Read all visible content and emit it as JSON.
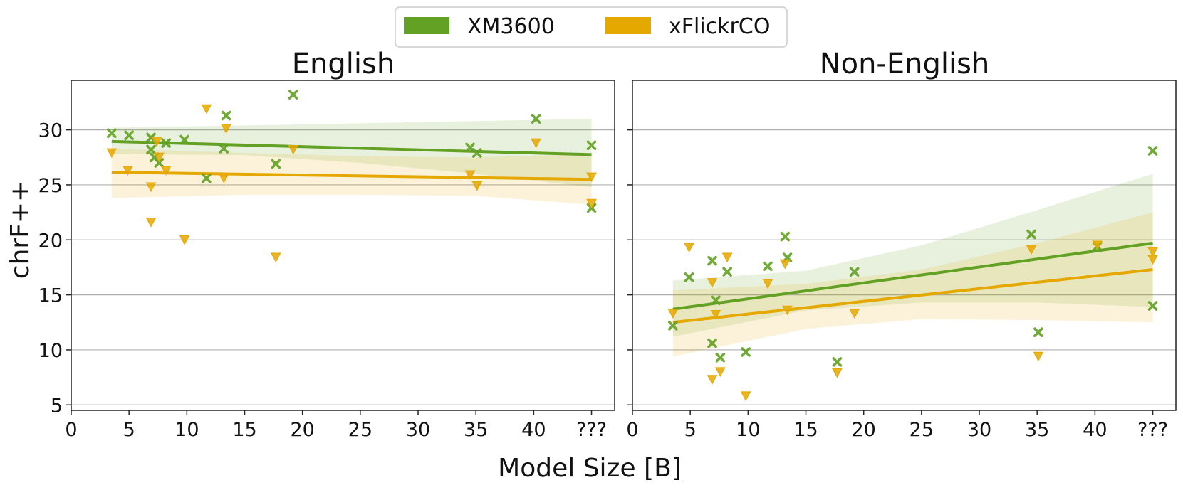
{
  "legend": {
    "entries": [
      {
        "label": "XM3600",
        "color": "#62a123"
      },
      {
        "label": "xFlickrCO",
        "color": "#e5a800"
      }
    ]
  },
  "axes": {
    "xlabel": "Model Size [B]",
    "ylabel": "chrF++"
  },
  "chart_data": [
    {
      "type": "scatter",
      "title": "English",
      "xlabel": "Model Size [B]",
      "ylabel": "chrF++",
      "xlim": [
        0,
        47
      ],
      "ylim": [
        4.5,
        34.5
      ],
      "xticks": [
        "0",
        "5",
        "10",
        "15",
        "20",
        "25",
        "30",
        "35",
        "40",
        "???"
      ],
      "xtick_values": [
        0,
        5,
        10,
        15,
        20,
        25,
        30,
        35,
        40,
        45
      ],
      "yticks": [
        5,
        10,
        15,
        20,
        25,
        30
      ],
      "grid": "horizontal",
      "series": [
        {
          "name": "XM3600",
          "marker": "cross",
          "color": "#62a123",
          "points": [
            [
              3.5,
              29.7
            ],
            [
              5,
              29.5
            ],
            [
              6.9,
              29.3
            ],
            [
              6.9,
              28.2
            ],
            [
              7.2,
              27.5
            ],
            [
              7.6,
              27.0
            ],
            [
              8.2,
              28.8
            ],
            [
              9.8,
              29.1
            ],
            [
              11.7,
              25.6
            ],
            [
              13.2,
              28.3
            ],
            [
              13.4,
              31.3
            ],
            [
              17.7,
              26.9
            ],
            [
              19.2,
              33.2
            ],
            [
              34.5,
              28.4
            ],
            [
              35.1,
              27.9
            ],
            [
              40.2,
              31.0
            ],
            [
              45,
              28.6
            ],
            [
              45,
              22.9
            ]
          ],
          "trend": {
            "x": [
              3.5,
              45
            ],
            "y": [
              28.95,
              27.75
            ]
          },
          "band": {
            "x": [
              3.5,
              15,
              25,
              35,
              45
            ],
            "upper": [
              30.2,
              30.4,
              30.6,
              30.8,
              31.0
            ],
            "lower": [
              27.8,
              27.7,
              27.0,
              26.0,
              24.8
            ]
          }
        },
        {
          "name": "xFlickrCO",
          "marker": "triangle-down",
          "color": "#e5a800",
          "points": [
            [
              3.5,
              27.9
            ],
            [
              4.9,
              26.3
            ],
            [
              6.9,
              24.8
            ],
            [
              6.9,
              21.6
            ],
            [
              7.4,
              28.9
            ],
            [
              7.6,
              27.5
            ],
            [
              8.2,
              26.3
            ],
            [
              9.8,
              20.0
            ],
            [
              11.7,
              31.9
            ],
            [
              13.2,
              25.6
            ],
            [
              13.4,
              30.1
            ],
            [
              17.7,
              18.4
            ],
            [
              19.2,
              28.2
            ],
            [
              34.5,
              25.9
            ],
            [
              35.1,
              24.9
            ],
            [
              40.2,
              28.8
            ],
            [
              45,
              25.7
            ],
            [
              45,
              23.3
            ]
          ],
          "trend": {
            "x": [
              3.5,
              45
            ],
            "y": [
              26.15,
              25.5
            ]
          },
          "band": {
            "x": [
              3.5,
              15,
              25,
              35,
              45
            ],
            "upper": [
              28.3,
              27.9,
              27.6,
              27.5,
              27.8
            ],
            "lower": [
              23.8,
              24.1,
              24.1,
              24.0,
              23.2
            ]
          }
        }
      ]
    },
    {
      "type": "scatter",
      "title": "Non-English",
      "xlabel": "Model Size [B]",
      "ylabel": "chrF++",
      "xlim": [
        0,
        47
      ],
      "ylim": [
        4.5,
        34.5
      ],
      "xticks": [
        "0",
        "5",
        "10",
        "15",
        "20",
        "25",
        "30",
        "35",
        "40",
        "???"
      ],
      "xtick_values": [
        0,
        5,
        10,
        15,
        20,
        25,
        30,
        35,
        40,
        45
      ],
      "yticks": [
        5,
        10,
        15,
        20,
        25,
        30
      ],
      "grid": "horizontal",
      "series": [
        {
          "name": "XM3600",
          "marker": "cross",
          "color": "#62a123",
          "points": [
            [
              3.5,
              12.2
            ],
            [
              4.9,
              16.6
            ],
            [
              6.9,
              18.1
            ],
            [
              6.9,
              10.6
            ],
            [
              7.2,
              14.5
            ],
            [
              7.6,
              9.3
            ],
            [
              8.2,
              17.1
            ],
            [
              9.8,
              9.8
            ],
            [
              11.7,
              17.6
            ],
            [
              13.2,
              20.3
            ],
            [
              13.4,
              18.4
            ],
            [
              17.7,
              8.9
            ],
            [
              19.2,
              17.1
            ],
            [
              34.5,
              20.5
            ],
            [
              35.1,
              11.6
            ],
            [
              40.2,
              19.4
            ],
            [
              45,
              28.1
            ],
            [
              45,
              14.0
            ]
          ],
          "trend": {
            "x": [
              3.5,
              45
            ],
            "y": [
              13.7,
              19.7
            ]
          },
          "band": {
            "x": [
              3.5,
              15,
              25,
              35,
              45
            ],
            "upper": [
              16.3,
              17.2,
              19.5,
              22.7,
              26.0
            ],
            "lower": [
              11.2,
              13.6,
              14.3,
              14.3,
              13.9
            ]
          }
        },
        {
          "name": "xFlickrCO",
          "marker": "triangle-down",
          "color": "#e5a800",
          "points": [
            [
              3.5,
              13.3
            ],
            [
              4.9,
              19.3
            ],
            [
              6.9,
              7.3
            ],
            [
              6.9,
              16.1
            ],
            [
              7.2,
              13.2
            ],
            [
              7.6,
              8.0
            ],
            [
              8.2,
              18.4
            ],
            [
              9.8,
              5.8
            ],
            [
              11.7,
              16.0
            ],
            [
              13.2,
              17.8
            ],
            [
              13.4,
              13.6
            ],
            [
              17.7,
              7.9
            ],
            [
              19.2,
              13.3
            ],
            [
              34.5,
              19.1
            ],
            [
              35.1,
              9.4
            ],
            [
              40.2,
              19.5
            ],
            [
              45,
              18.9
            ],
            [
              45,
              18.2
            ]
          ],
          "trend": {
            "x": [
              3.5,
              45
            ],
            "y": [
              12.5,
              17.3
            ]
          },
          "band": {
            "x": [
              3.5,
              15,
              25,
              35,
              45
            ],
            "upper": [
              15.4,
              16.0,
              17.3,
              19.7,
              22.5
            ],
            "lower": [
              9.4,
              11.9,
              12.8,
              12.7,
              12.5
            ]
          }
        }
      ]
    }
  ]
}
